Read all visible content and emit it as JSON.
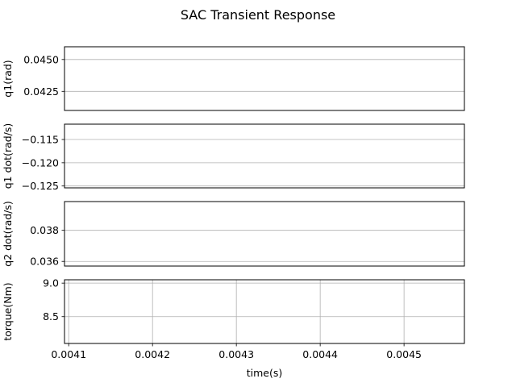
{
  "chart_data": {
    "type": "line",
    "title": "SAC Transient Response",
    "xlabel": "time(s)",
    "grid": true,
    "shared_x": {
      "lim": [
        0.004095,
        0.004572
      ],
      "ticks": [
        0.0041,
        0.0042,
        0.0043,
        0.0044,
        0.0045
      ],
      "tick_labels": [
        "0.0041",
        "0.0042",
        "0.0043",
        "0.0044",
        "0.0045"
      ]
    },
    "subplots": [
      {
        "ylabel": "q1(rad)",
        "ylim": [
          0.041,
          0.046
        ],
        "yticks": [
          0.0425,
          0.045
        ],
        "ytick_labels": [
          "0.0425",
          "0.0450"
        ],
        "xgrid": false
      },
      {
        "ylabel": "q1 dot(rad/s)",
        "ylim": [
          -0.1254,
          -0.1117
        ],
        "yticks": [
          -0.125,
          -0.12,
          -0.115
        ],
        "ytick_labels": [
          "−0.125",
          "−0.120",
          "−0.115"
        ],
        "xgrid": false
      },
      {
        "ylabel": "q2 dot(rad/s)",
        "ylim": [
          0.0357,
          0.03985
        ],
        "yticks": [
          0.036,
          0.038
        ],
        "ytick_labels": [
          "0.036",
          "0.038"
        ],
        "xgrid": false
      },
      {
        "ylabel": "torque(Nm)",
        "ylim": [
          8.1,
          9.05
        ],
        "yticks": [
          8.5,
          9.0
        ],
        "ytick_labels": [
          "8.5",
          "9.0"
        ],
        "xgrid": true
      }
    ],
    "series": []
  }
}
